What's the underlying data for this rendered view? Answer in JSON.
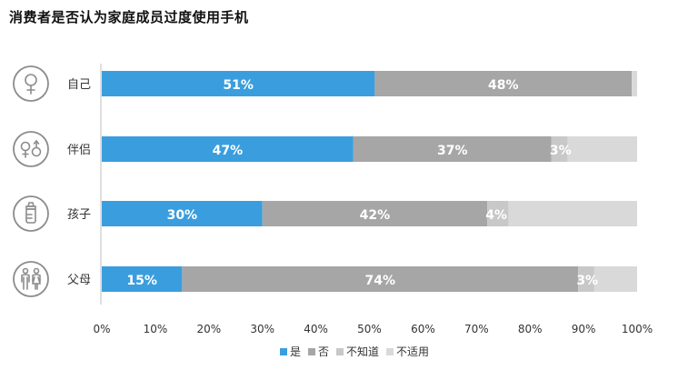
{
  "chart_data": {
    "type": "bar",
    "stacked": true,
    "orientation": "horizontal",
    "title": "消费者是否认为家庭成员过度使用手机",
    "categories": [
      "自己",
      "伴侣",
      "孩子",
      "父母"
    ],
    "category_icons": [
      "female-symbol-icon",
      "couple-gender-symbols-icon",
      "baby-bottle-icon",
      "parents-icon"
    ],
    "series": [
      {
        "name": "是",
        "values": [
          51,
          47,
          30,
          15
        ],
        "labels": [
          "51%",
          "47%",
          "30%",
          "15%"
        ],
        "color": "#3a9ede"
      },
      {
        "name": "否",
        "values": [
          48,
          37,
          42,
          74
        ],
        "labels": [
          "48%",
          "37%",
          "42%",
          "74%"
        ],
        "color": "#a6a6a6"
      },
      {
        "name": "不知道",
        "values": [
          0,
          3,
          4,
          3
        ],
        "labels": [
          "",
          "3%",
          "4%",
          "3%"
        ],
        "color": "#c8c8c8"
      },
      {
        "name": "不适用",
        "values": [
          1,
          13,
          24,
          8
        ],
        "labels": [
          "",
          "",
          "",
          ""
        ],
        "color": "#d9d9d9"
      }
    ],
    "x_ticks": [
      "0%",
      "10%",
      "20%",
      "30%",
      "40%",
      "50%",
      "60%",
      "70%",
      "80%",
      "90%",
      "100%"
    ],
    "xlim": [
      0,
      100
    ],
    "legend_position": "bottom",
    "grid": false
  }
}
